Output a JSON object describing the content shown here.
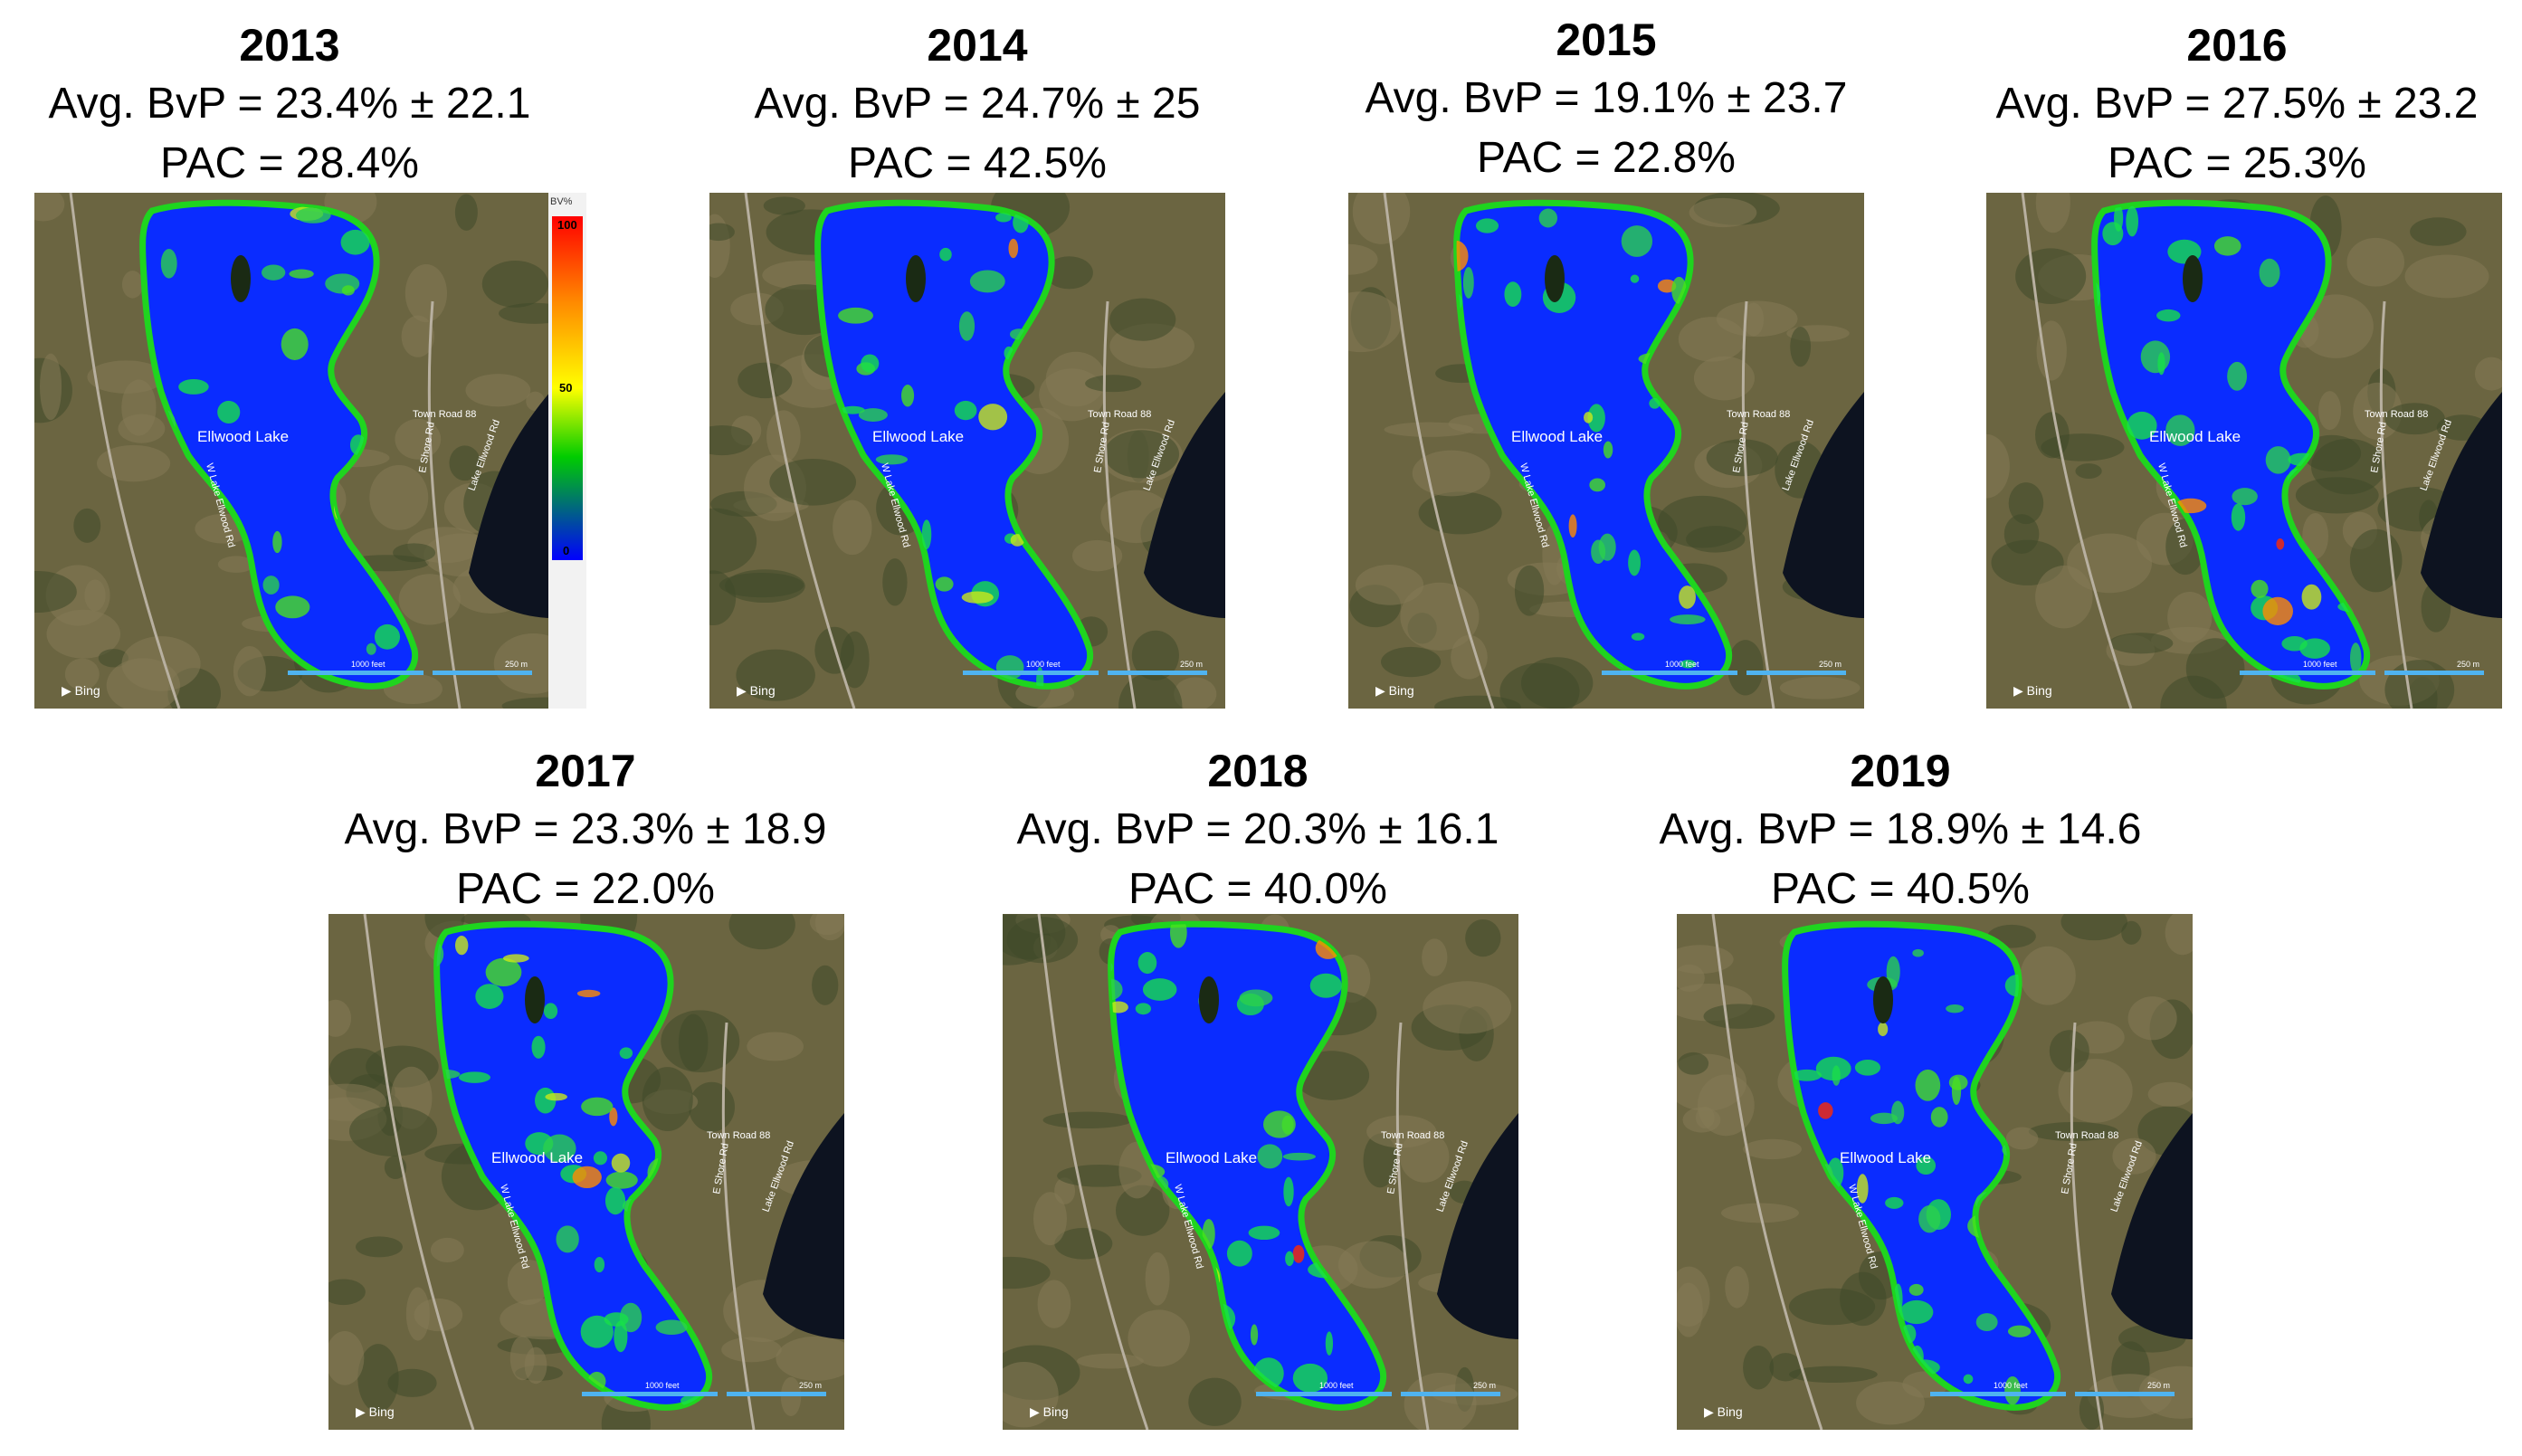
{
  "panels": [
    {
      "year": "2013",
      "bvp": "Avg. BvP = 23.4% ± 22.1",
      "pac": "PAC = 28.4%"
    },
    {
      "year": "2014",
      "bvp": "Avg. BvP = 24.7% ± 25",
      "pac": "PAC = 42.5%"
    },
    {
      "year": "2015",
      "bvp": "Avg. BvP = 19.1% ± 23.7",
      "pac": "PAC = 22.8%"
    },
    {
      "year": "2016",
      "bvp": "Avg. BvP = 27.5% ± 23.2",
      "pac": "PAC = 25.3%"
    },
    {
      "year": "2017",
      "bvp": "Avg. BvP = 23.3% ± 18.9",
      "pac": "PAC = 22.0%"
    },
    {
      "year": "2018",
      "bvp": "Avg. BvP = 20.3% ± 16.1",
      "pac": "PAC = 40.0%"
    },
    {
      "year": "2019",
      "bvp": "Avg. BvP = 18.9% ± 14.6",
      "pac": "PAC = 40.5%"
    }
  ],
  "map_labels": {
    "lake": "Ellwood Lake",
    "road1": "Town Road 88",
    "road2": "E Shore Rd",
    "road3": "Lake Ellwood Rd",
    "road4": "W Lake Ellwood Rd",
    "brand": "Bing",
    "scale1": "1000 feet",
    "scale2": "250 m"
  },
  "legend": {
    "unit": "BV%",
    "max": "100",
    "mid": "50",
    "min": "0"
  },
  "colors": {
    "lake": "#0a2cff",
    "ground": "#6b6541",
    "forest": "#3f4a2a",
    "scale": "#4fb3f0"
  }
}
